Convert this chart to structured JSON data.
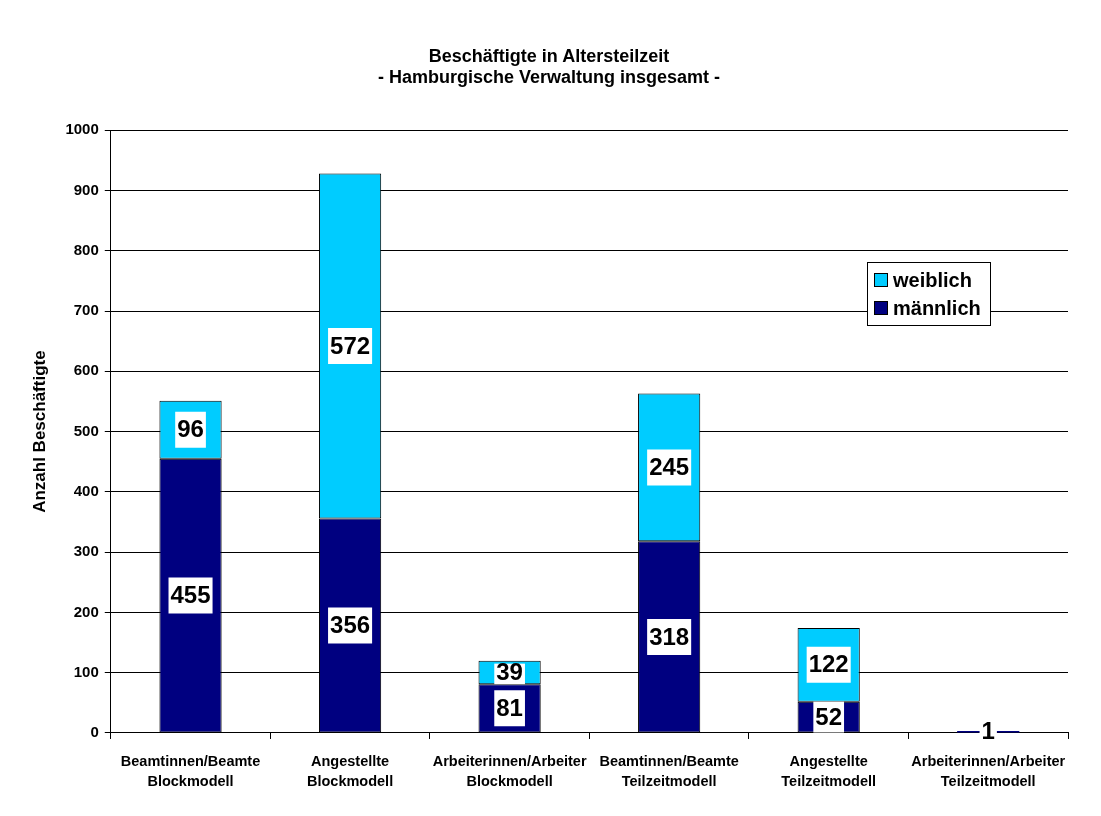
{
  "chart_data": {
    "type": "bar",
    "title": "Beschäftigte in Altersteilzeit",
    "subtitle": "- Hamburgische Verwaltung insgesamt -",
    "ylabel": "Anzahl Beschäftigte",
    "categories": [
      "Beamtinnen/Beamte Blockmodell",
      "Angestellte Blockmodell",
      "Arbeiterinnen/Arbeiter Blockmodell",
      "Beamtinnen/Beamte Teilzeitmodell",
      "Angestellte Teilzeitmodell",
      "Arbeiterinnen/Arbeiter Teilzeitmodell"
    ],
    "series": [
      {
        "name": "männlich",
        "color": "#000080",
        "values": [
          455,
          356,
          81,
          318,
          52,
          1
        ]
      },
      {
        "name": "weiblich",
        "color": "#00ccff",
        "values": [
          96,
          572,
          39,
          245,
          122,
          null
        ]
      }
    ],
    "stacked": true,
    "data_labels": true,
    "ylim": [
      0,
      1000
    ],
    "yticks": [
      0,
      100,
      200,
      300,
      400,
      500,
      600,
      700,
      800,
      900,
      1000
    ],
    "grid": "y",
    "legend": "right"
  }
}
